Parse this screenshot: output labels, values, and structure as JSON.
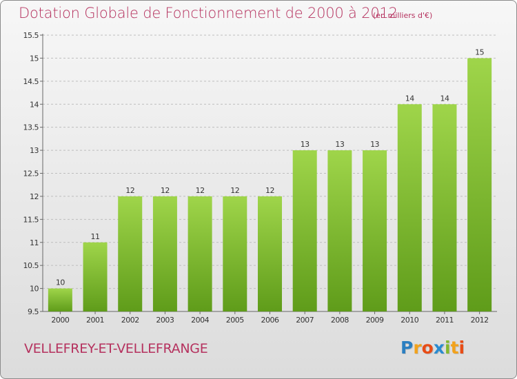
{
  "title": "Dotation Globale de Fonctionnement de 2000 à 2012",
  "unit": "(en milliers d'€)",
  "commune": "VELLEFREY-ET-VELLEFRANGE",
  "brand": [
    "P",
    "r",
    "o",
    "x",
    "i",
    "t",
    "i"
  ],
  "colors": {
    "title": "#b5315e",
    "bar_top": "#9fd54a",
    "bar_bottom": "#5f9c1a",
    "grid": "#bdbdbd",
    "axis_text": "#333333"
  },
  "chart_data": {
    "type": "bar",
    "title": "Dotation Globale de Fonctionnement de 2000 à 2012",
    "categories": [
      "2000",
      "2001",
      "2002",
      "2003",
      "2004",
      "2005",
      "2006",
      "2007",
      "2008",
      "2009",
      "2010",
      "2011",
      "2012"
    ],
    "values": [
      10,
      11,
      12,
      12,
      12,
      12,
      12,
      13,
      13,
      13,
      14,
      14,
      15
    ],
    "data_labels": [
      "10",
      "11",
      "12",
      "12",
      "12",
      "12",
      "12",
      "13",
      "13",
      "13",
      "14",
      "14",
      "15"
    ],
    "ylim": [
      9.5,
      15.5
    ],
    "yticks": [
      9.5,
      10,
      10.5,
      11,
      11.5,
      12,
      12.5,
      13,
      13.5,
      14,
      14.5,
      15,
      15.5
    ],
    "ytick_labels": [
      "9.5",
      "10",
      "10.5",
      "11",
      "11.5",
      "12",
      "12.5",
      "13",
      "13.5",
      "14",
      "14.5",
      "15",
      "15.5"
    ],
    "grid": true,
    "legend": "none"
  }
}
